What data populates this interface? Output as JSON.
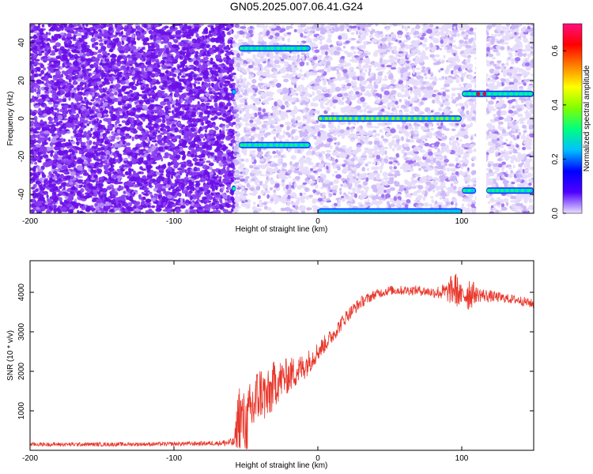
{
  "title": "GN05.2025.007.06.41.G24",
  "chart_data": [
    {
      "type": "heatmap",
      "xlabel": "Height of straight line (km)",
      "ylabel": "Frequency (Hz)",
      "xlim": [
        -200,
        150
      ],
      "ylim": [
        -50,
        50
      ],
      "xticks": [
        "-200",
        "-100",
        "0",
        "100"
      ],
      "yticks": [
        "-40",
        "-20",
        "0",
        "20",
        "40"
      ],
      "colorbar": {
        "label": "Normalized spectral amplitude",
        "range": [
          0,
          0.7
        ],
        "ticks": [
          "0.0",
          "0.2",
          "0.4",
          "0.6"
        ],
        "colors": [
          "#e8e0ff",
          "#5000ff",
          "#0000ff",
          "#00c0ff",
          "#00ff80",
          "#80ff00",
          "#ffff00",
          "#ff8000",
          "#ff0000",
          "#ff1080"
        ]
      },
      "noise_regions": [
        {
          "x": [
            -200,
            -58
          ],
          "level": 0.15
        },
        {
          "x": [
            -58,
            0
          ],
          "level": 0.05
        },
        {
          "x": [
            0,
            150
          ],
          "level": 0.03
        }
      ],
      "gap": {
        "x": [
          110,
          117
        ]
      },
      "tracks": [
        {
          "x": [
            -55,
            -5
          ],
          "y": 37,
          "level": 0.3
        },
        {
          "x": [
            -55,
            -5
          ],
          "y": -14,
          "level": 0.3
        },
        {
          "x": [
            -60,
            -57
          ],
          "y": 14,
          "level": 0.25
        },
        {
          "x": [
            -60,
            -57
          ],
          "y": -37,
          "level": 0.3
        },
        {
          "x": [
            0,
            100
          ],
          "y": 0,
          "level": 0.35
        },
        {
          "x": [
            0,
            100
          ],
          "y": -49,
          "level": 0.2
        },
        {
          "x": [
            100,
            150
          ],
          "y": 13,
          "level": 0.3
        },
        {
          "x": [
            110,
            117
          ],
          "y": 13,
          "level": 0.65
        },
        {
          "x": [
            100,
            110
          ],
          "y": -38,
          "level": 0.3
        },
        {
          "x": [
            117,
            150
          ],
          "y": -38,
          "level": 0.3
        }
      ]
    },
    {
      "type": "line",
      "xlabel": "Height of straight line (km)",
      "ylabel": "SNR (10 * v/v)",
      "xlim": [
        -200,
        150
      ],
      "ylim": [
        0,
        4800
      ],
      "xticks": [
        "-200",
        "-100",
        "0",
        "100"
      ],
      "yticks": [
        "1000",
        "2000",
        "3000",
        "4000"
      ],
      "color": "#e8362a",
      "series": [
        {
          "x": [
            -200,
            -150,
            -100,
            -70,
            -58,
            -55,
            -50,
            -45,
            -40,
            -35,
            -30,
            -25,
            -20,
            -15,
            -10,
            -5,
            0,
            10,
            20,
            30,
            40,
            50,
            60,
            70,
            80,
            90,
            95,
            100,
            105,
            110,
            120,
            130,
            140,
            150
          ],
          "values": [
            150,
            150,
            160,
            180,
            200,
            900,
            600,
            1100,
            1500,
            1300,
            1700,
            1800,
            1900,
            2000,
            2100,
            2300,
            2500,
            2900,
            3400,
            3750,
            3950,
            4050,
            4050,
            4050,
            4000,
            4000,
            4100,
            3900,
            4000,
            3950,
            3900,
            3850,
            3800,
            3700
          ],
          "noise": [
            50,
            50,
            50,
            60,
            120,
            900,
            800,
            900,
            700,
            700,
            600,
            500,
            450,
            400,
            350,
            300,
            250,
            200,
            180,
            150,
            120,
            120,
            120,
            120,
            130,
            250,
            500,
            250,
            500,
            200,
            150,
            120,
            120,
            120
          ]
        }
      ]
    }
  ]
}
